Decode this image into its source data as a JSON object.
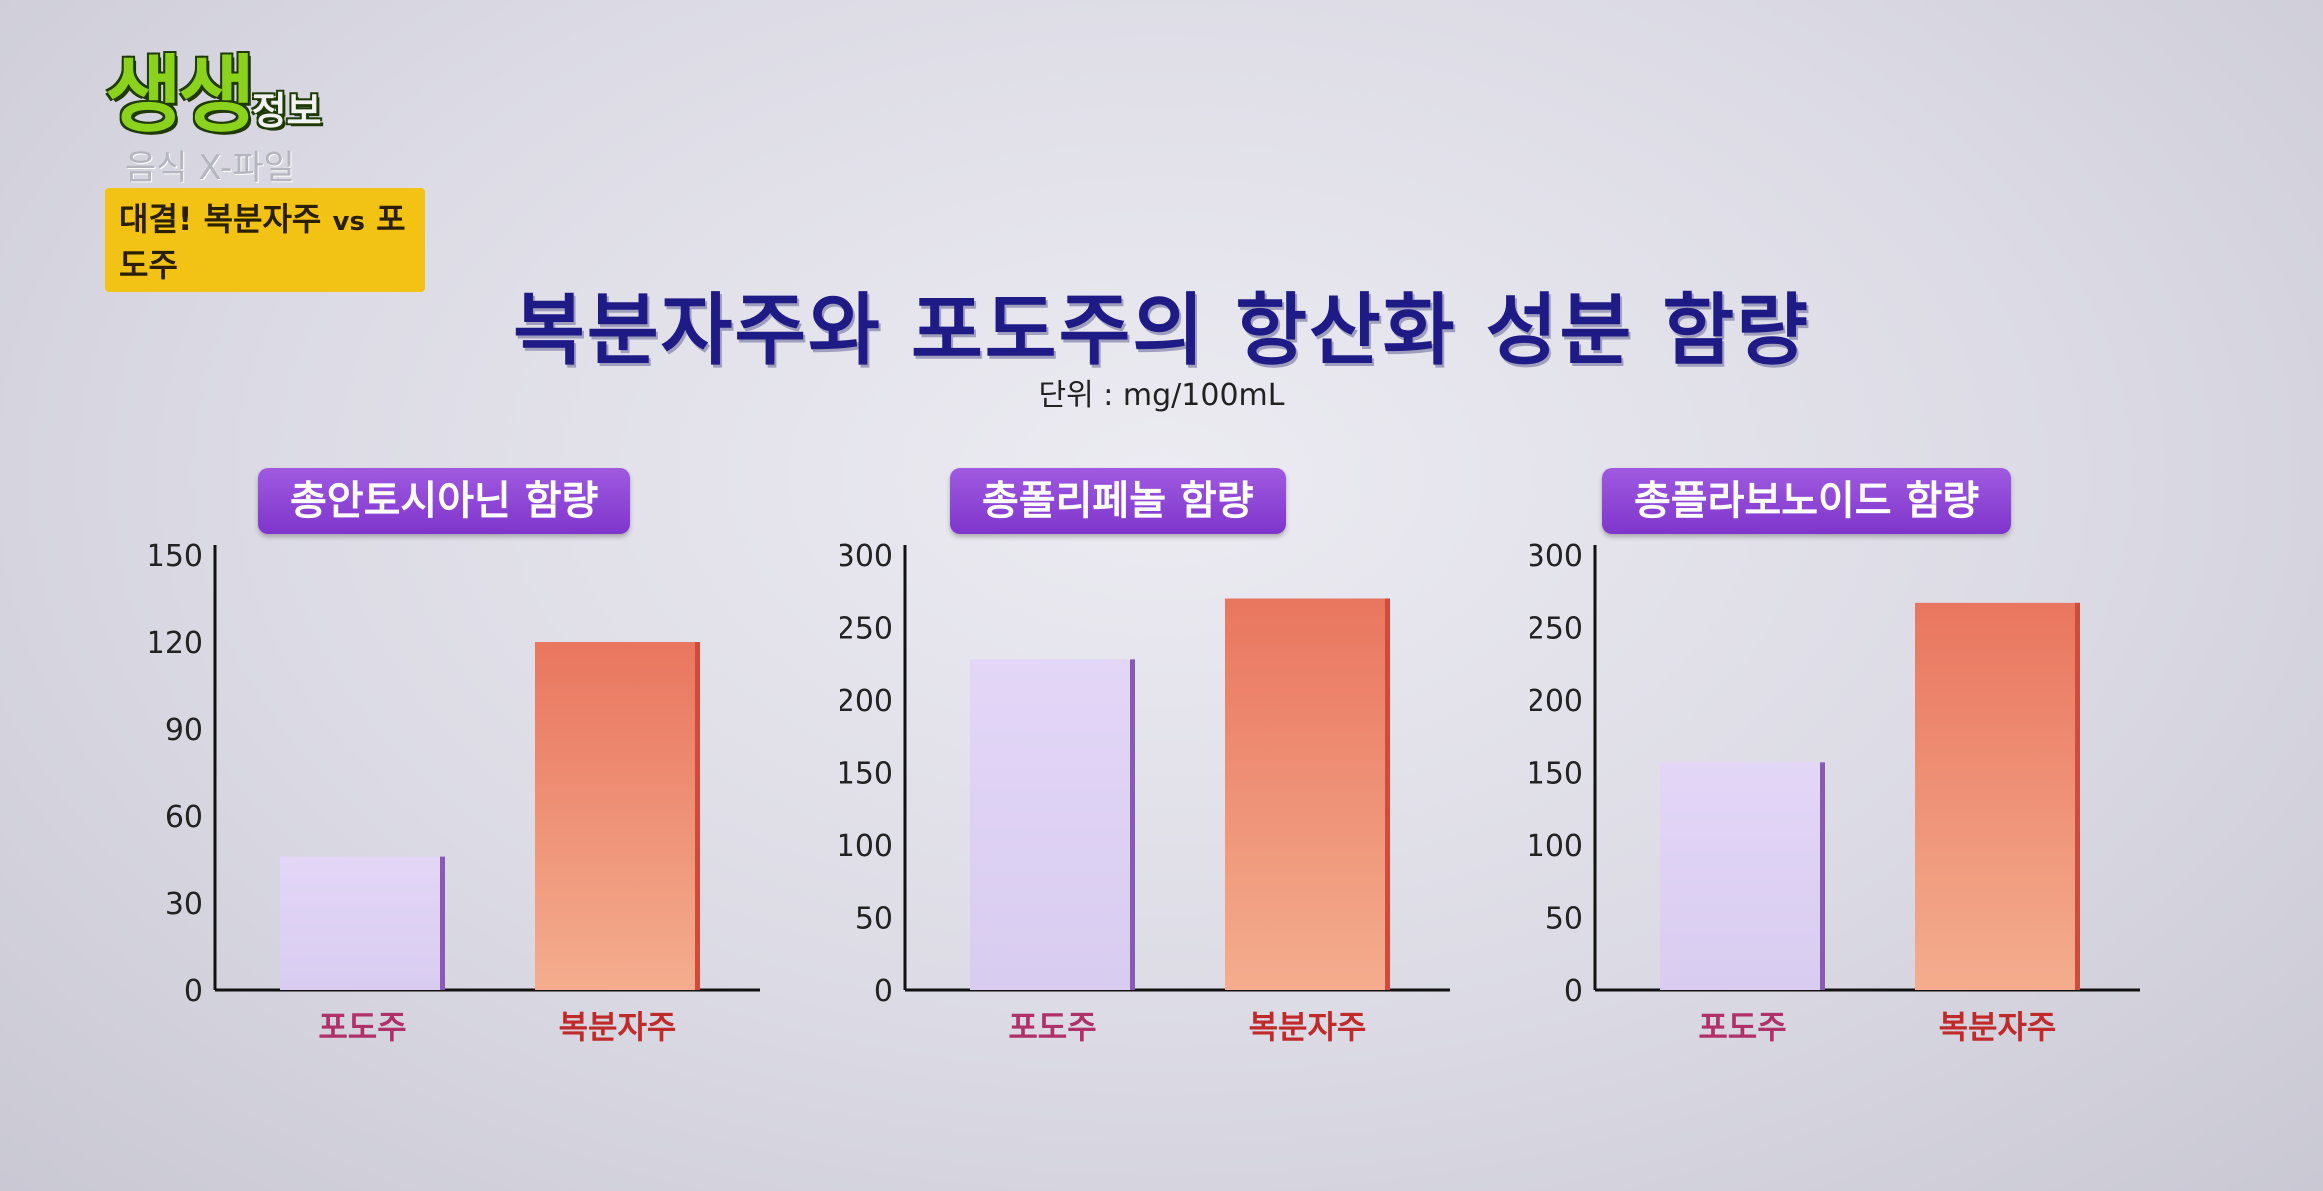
{
  "logo": {
    "main": "생생",
    "main_small": "정보",
    "subtitle": "음식 X-파일",
    "badge_left": "대결! 복분자주",
    "badge_vs": "vs",
    "badge_right": "포도주"
  },
  "title": "복분자주와 포도주의 항산화 성분 함량",
  "unit": "단위 : mg/100mL",
  "colors": {
    "grape_bar": "#d8ccf0",
    "grape_side": "#8a58b5",
    "bokbunja_bar": "#ee8c6e",
    "bokbunja_side": "#d24a3a",
    "grape_label": "#b0306a",
    "bokbunja_label": "#c02a2a"
  },
  "chart_data": [
    {
      "type": "bar",
      "title": "총안토시아닌 함량",
      "categories": [
        "포도주",
        "복분자주"
      ],
      "values": [
        46,
        120
      ],
      "yticks": [
        0,
        30,
        60,
        90,
        120,
        150
      ],
      "ylim": [
        0,
        150
      ]
    },
    {
      "type": "bar",
      "title": "총폴리페놀 함량",
      "categories": [
        "포도주",
        "복분자주"
      ],
      "values": [
        228,
        270
      ],
      "yticks": [
        0,
        50,
        100,
        150,
        200,
        250,
        300
      ],
      "ylim": [
        0,
        300
      ]
    },
    {
      "type": "bar",
      "title": "총플라보노이드 함량",
      "categories": [
        "포도주",
        "복분자주"
      ],
      "values": [
        157,
        267
      ],
      "yticks": [
        0,
        50,
        100,
        150,
        200,
        250,
        300
      ],
      "ylim": [
        0,
        300
      ]
    }
  ]
}
